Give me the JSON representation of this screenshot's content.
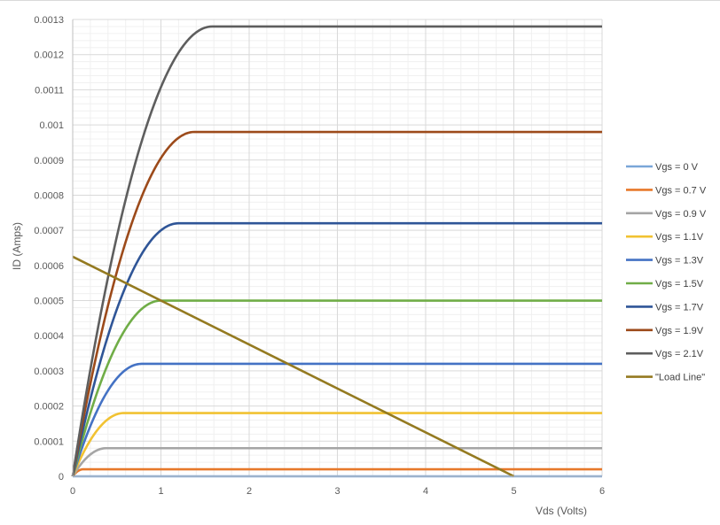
{
  "chart_data": {
    "type": "line",
    "title": "",
    "xlabel": "Vds (Volts)",
    "ylabel": "ID (Amps)",
    "xlim": [
      0,
      6
    ],
    "ylim": [
      0,
      0.0013
    ],
    "x_ticks": [
      "0",
      "1",
      "2",
      "3",
      "4",
      "5",
      "6"
    ],
    "y_ticks": [
      "0",
      "0.0001",
      "0.0002",
      "0.0003",
      "0.0004",
      "0.0005",
      "0.0006",
      "0.0007",
      "0.0008",
      "0.0009",
      "0.001",
      "0.0011",
      "0.0012",
      "0.0013"
    ],
    "grid": true,
    "legend_position": "right",
    "series": [
      {
        "name": "Vgs = 0 V",
        "color": "#7aa6d8",
        "kind": "mosfet",
        "i_sat": 0,
        "v_sat": 0.0
      },
      {
        "name": "Vgs = 0.7 V",
        "color": "#e7782a",
        "kind": "mosfet",
        "i_sat": 2e-05,
        "v_sat": 0.12
      },
      {
        "name": "Vgs = 0.9 V",
        "color": "#a5a5a5",
        "kind": "mosfet",
        "i_sat": 8e-05,
        "v_sat": 0.38
      },
      {
        "name": "Vgs = 1.1V",
        "color": "#f1c232",
        "kind": "mosfet",
        "i_sat": 0.00018,
        "v_sat": 0.58
      },
      {
        "name": "Vgs = 1.3V",
        "color": "#4472c4",
        "kind": "mosfet",
        "i_sat": 0.00032,
        "v_sat": 0.78
      },
      {
        "name": "Vgs = 1.5V",
        "color": "#70ad47",
        "kind": "mosfet",
        "i_sat": 0.0005,
        "v_sat": 1.0
      },
      {
        "name": "Vgs = 1.7V",
        "color": "#2f5597",
        "kind": "mosfet",
        "i_sat": 0.00072,
        "v_sat": 1.2
      },
      {
        "name": "Vgs = 1.9V",
        "color": "#9c4a1a",
        "kind": "mosfet",
        "i_sat": 0.00098,
        "v_sat": 1.38
      },
      {
        "name": "Vgs = 2.1V",
        "color": "#5e5e5e",
        "kind": "mosfet",
        "i_sat": 0.00128,
        "v_sat": 1.58
      },
      {
        "name": "\"Load Line\"",
        "color": "#947a20",
        "kind": "line",
        "x": [
          0,
          5
        ],
        "y": [
          0.000625,
          0
        ]
      }
    ]
  }
}
